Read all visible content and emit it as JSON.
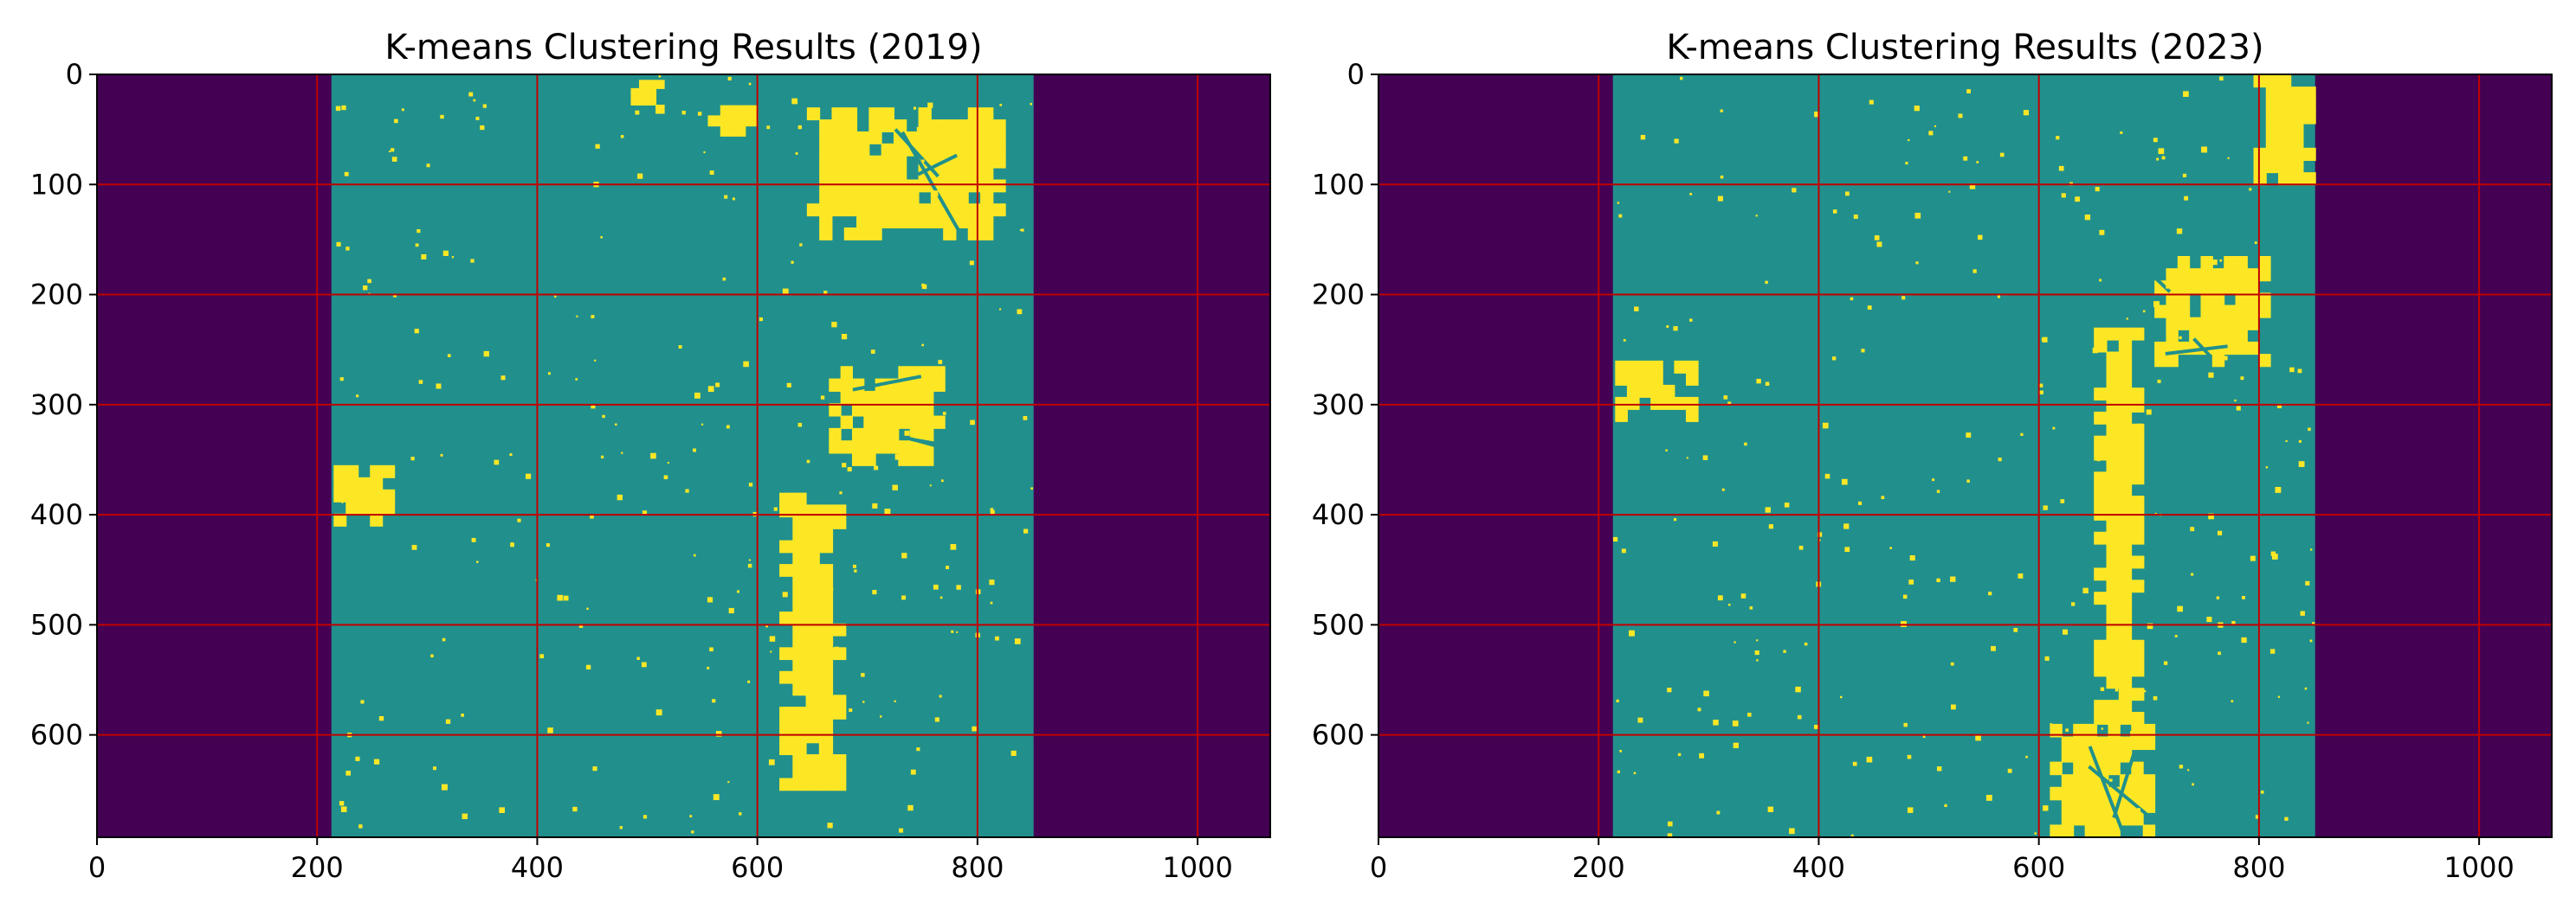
{
  "chart_data": [
    {
      "type": "heatmap",
      "title": "K-means Clustering Results (2019)",
      "xlim": [
        0,
        1066
      ],
      "ylim": [
        693,
        0
      ],
      "x_ticks": [
        "0",
        "200",
        "400",
        "600",
        "800",
        "1000"
      ],
      "y_ticks": [
        "0",
        "100",
        "200",
        "300",
        "400",
        "500",
        "600"
      ],
      "grid": true,
      "grid_color": "#c00000",
      "colors": {
        "background": "#440154",
        "cluster_1": "#21908c",
        "cluster_2": "#fde725"
      },
      "data_region_x": [
        213,
        851
      ],
      "cluster_2_blobs": [
        {
          "x": [
            645,
            825
          ],
          "y": [
            30,
            150
          ]
        },
        {
          "x": [
            555,
            600
          ],
          "y": [
            28,
            65
          ]
        },
        {
          "x": [
            665,
            770
          ],
          "y": [
            265,
            355
          ]
        },
        {
          "x": [
            620,
            680
          ],
          "y": [
            380,
            650
          ]
        },
        {
          "x": [
            215,
            270
          ],
          "y": [
            355,
            410
          ]
        },
        {
          "x": [
            485,
            515
          ],
          "y": [
            5,
            35
          ]
        }
      ]
    },
    {
      "type": "heatmap",
      "title": "K-means Clustering Results (2023)",
      "xlim": [
        0,
        1066
      ],
      "ylim": [
        693,
        0
      ],
      "x_ticks": [
        "0",
        "200",
        "400",
        "600",
        "800",
        "1000"
      ],
      "y_ticks": [
        "0",
        "100",
        "200",
        "300",
        "400",
        "500",
        "600"
      ],
      "grid": true,
      "grid_color": "#c00000",
      "colors": {
        "background": "#440154",
        "cluster_1": "#21908c",
        "cluster_2": "#fde725"
      },
      "data_region_x": [
        213,
        851
      ],
      "cluster_2_blobs": [
        {
          "x": [
            705,
            810
          ],
          "y": [
            165,
            265
          ]
        },
        {
          "x": [
            215,
            290
          ],
          "y": [
            260,
            315
          ]
        },
        {
          "x": [
            650,
            695
          ],
          "y": [
            230,
            590
          ]
        },
        {
          "x": [
            610,
            705
          ],
          "y": [
            590,
            693
          ]
        },
        {
          "x": [
            795,
            851
          ],
          "y": [
            0,
            100
          ]
        }
      ]
    }
  ]
}
